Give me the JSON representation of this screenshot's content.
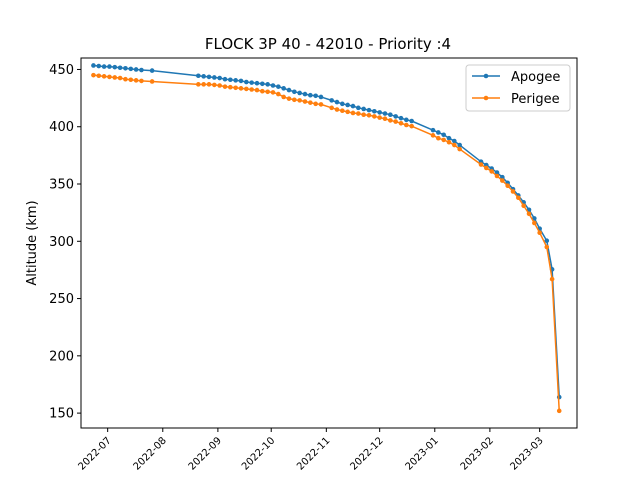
{
  "chart_data": {
    "type": "line",
    "title": "FLOCK 3P 40 - 42010 - Priority :4",
    "xlabel": "",
    "ylabel": "Altitude (km)",
    "x_ticks": [
      "2022-07",
      "2022-08",
      "2022-09",
      "2022-10",
      "2022-11",
      "2022-12",
      "2023-01",
      "2023-02",
      "2023-03"
    ],
    "y_ticks": [
      150,
      200,
      250,
      300,
      350,
      400,
      450
    ],
    "xlim": [
      "2022-06-16",
      "2023-03-22"
    ],
    "ylim": [
      137,
      460
    ],
    "legend_position": "top-right",
    "series": [
      {
        "name": "Apogee",
        "color": "#1f77b4",
        "points": [
          [
            "2022-06-23",
            453.5
          ],
          [
            "2022-06-26",
            453
          ],
          [
            "2022-06-29",
            452.5
          ],
          [
            "2022-07-02",
            452.5
          ],
          [
            "2022-07-05",
            452
          ],
          [
            "2022-07-08",
            451.5
          ],
          [
            "2022-07-11",
            451
          ],
          [
            "2022-07-14",
            450.5
          ],
          [
            "2022-07-17",
            450
          ],
          [
            "2022-07-20",
            449.5
          ],
          [
            "2022-07-26",
            449
          ],
          [
            "2022-08-21",
            444.5
          ],
          [
            "2022-08-24",
            444
          ],
          [
            "2022-08-27",
            443.5
          ],
          [
            "2022-08-30",
            443
          ],
          [
            "2022-09-02",
            442.5
          ],
          [
            "2022-09-05",
            441.5
          ],
          [
            "2022-09-08",
            441
          ],
          [
            "2022-09-11",
            440.5
          ],
          [
            "2022-09-14",
            440
          ],
          [
            "2022-09-17",
            439
          ],
          [
            "2022-09-20",
            438.5
          ],
          [
            "2022-09-23",
            438
          ],
          [
            "2022-09-26",
            437.5
          ],
          [
            "2022-09-29",
            437
          ],
          [
            "2022-10-02",
            436
          ],
          [
            "2022-10-05",
            435
          ],
          [
            "2022-10-08",
            433.5
          ],
          [
            "2022-10-11",
            432
          ],
          [
            "2022-10-14",
            430.5
          ],
          [
            "2022-10-17",
            429.5
          ],
          [
            "2022-10-20",
            428.5
          ],
          [
            "2022-10-23",
            427.5
          ],
          [
            "2022-10-26",
            427
          ],
          [
            "2022-10-29",
            426
          ],
          [
            "2022-11-04",
            423
          ],
          [
            "2022-11-07",
            421.5
          ],
          [
            "2022-11-10",
            420
          ],
          [
            "2022-11-13",
            419
          ],
          [
            "2022-11-16",
            418
          ],
          [
            "2022-11-19",
            416.5
          ],
          [
            "2022-11-22",
            415.5
          ],
          [
            "2022-11-25",
            414.5
          ],
          [
            "2022-11-28",
            413.5
          ],
          [
            "2022-12-01",
            412.5
          ],
          [
            "2022-12-04",
            411.5
          ],
          [
            "2022-12-07",
            410.5
          ],
          [
            "2022-12-10",
            409
          ],
          [
            "2022-12-13",
            407.5
          ],
          [
            "2022-12-16",
            406
          ],
          [
            "2022-12-19",
            405
          ],
          [
            "2022-12-31",
            397
          ],
          [
            "2023-01-03",
            395
          ],
          [
            "2023-01-06",
            393
          ],
          [
            "2023-01-09",
            390
          ],
          [
            "2023-01-12",
            387.5
          ],
          [
            "2023-01-15",
            384
          ],
          [
            "2023-01-27",
            369.5
          ],
          [
            "2023-01-30",
            366.5
          ],
          [
            "2023-02-02",
            363.5
          ],
          [
            "2023-02-05",
            360
          ],
          [
            "2023-02-08",
            356
          ],
          [
            "2023-02-11",
            351
          ],
          [
            "2023-02-14",
            345.5
          ],
          [
            "2023-02-17",
            340
          ],
          [
            "2023-02-20",
            334
          ],
          [
            "2023-02-23",
            327.5
          ],
          [
            "2023-02-26",
            320
          ],
          [
            "2023-03-01",
            311
          ],
          [
            "2023-03-05",
            300.5
          ],
          [
            "2023-03-08",
            275.5
          ],
          [
            "2023-03-12",
            164
          ]
        ]
      },
      {
        "name": "Perigee",
        "color": "#ff7f0e",
        "points": [
          [
            "2022-06-23",
            445
          ],
          [
            "2022-06-26",
            444.5
          ],
          [
            "2022-06-29",
            444
          ],
          [
            "2022-07-02",
            443.5
          ],
          [
            "2022-07-05",
            443
          ],
          [
            "2022-07-08",
            442.5
          ],
          [
            "2022-07-11",
            441.5
          ],
          [
            "2022-07-14",
            441
          ],
          [
            "2022-07-17",
            440.5
          ],
          [
            "2022-07-20",
            440
          ],
          [
            "2022-07-26",
            439.5
          ],
          [
            "2022-08-21",
            437
          ],
          [
            "2022-08-24",
            437
          ],
          [
            "2022-08-27",
            437
          ],
          [
            "2022-08-30",
            436.5
          ],
          [
            "2022-09-02",
            436
          ],
          [
            "2022-09-05",
            435
          ],
          [
            "2022-09-08",
            434.5
          ],
          [
            "2022-09-11",
            434
          ],
          [
            "2022-09-14",
            433.5
          ],
          [
            "2022-09-17",
            433
          ],
          [
            "2022-09-20",
            432.5
          ],
          [
            "2022-09-23",
            432
          ],
          [
            "2022-09-26",
            431
          ],
          [
            "2022-09-29",
            430.5
          ],
          [
            "2022-10-02",
            430
          ],
          [
            "2022-10-05",
            428.5
          ],
          [
            "2022-10-08",
            426
          ],
          [
            "2022-10-11",
            424.5
          ],
          [
            "2022-10-14",
            423.5
          ],
          [
            "2022-10-17",
            423
          ],
          [
            "2022-10-20",
            422
          ],
          [
            "2022-10-23",
            421
          ],
          [
            "2022-10-26",
            420
          ],
          [
            "2022-10-29",
            419.5
          ],
          [
            "2022-11-04",
            416.5
          ],
          [
            "2022-11-07",
            415
          ],
          [
            "2022-11-10",
            414
          ],
          [
            "2022-11-13",
            413
          ],
          [
            "2022-11-16",
            412
          ],
          [
            "2022-11-19",
            411.5
          ],
          [
            "2022-11-22",
            410.5
          ],
          [
            "2022-11-25",
            410
          ],
          [
            "2022-11-28",
            409
          ],
          [
            "2022-12-01",
            408
          ],
          [
            "2022-12-04",
            407
          ],
          [
            "2022-12-07",
            405.5
          ],
          [
            "2022-12-10",
            404.5
          ],
          [
            "2022-12-13",
            403
          ],
          [
            "2022-12-16",
            401.5
          ],
          [
            "2022-12-19",
            400.5
          ],
          [
            "2022-12-31",
            392.5
          ],
          [
            "2023-01-03",
            390
          ],
          [
            "2023-01-06",
            388.5
          ],
          [
            "2023-01-09",
            386.5
          ],
          [
            "2023-01-12",
            384
          ],
          [
            "2023-01-15",
            380.5
          ],
          [
            "2023-01-27",
            367
          ],
          [
            "2023-01-30",
            364
          ],
          [
            "2023-02-02",
            361
          ],
          [
            "2023-02-05",
            357
          ],
          [
            "2023-02-08",
            353
          ],
          [
            "2023-02-11",
            348.5
          ],
          [
            "2023-02-14",
            343.5
          ],
          [
            "2023-02-17",
            338
          ],
          [
            "2023-02-20",
            331
          ],
          [
            "2023-02-23",
            324
          ],
          [
            "2023-02-26",
            316
          ],
          [
            "2023-03-01",
            307.5
          ],
          [
            "2023-03-05",
            295
          ],
          [
            "2023-03-08",
            267
          ],
          [
            "2023-03-12",
            152
          ]
        ]
      }
    ]
  }
}
